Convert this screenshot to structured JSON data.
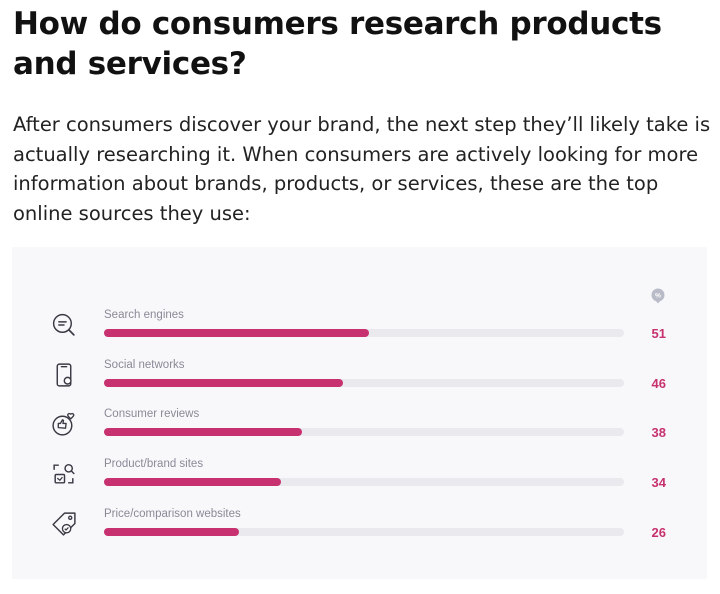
{
  "article": {
    "title": "How do consumers research products and services?",
    "intro": "After consumers discover your brand, the next step they’ll likely take is actually researching it. When consumers are actively looking for more information about brands, products, or services, these are the top online sources they use:"
  },
  "badge": {
    "label": "%",
    "icon": "percent-badge-icon"
  },
  "colors": {
    "bar": "#c7316f",
    "track": "#e9e9ee",
    "card": "#f8f8fb",
    "label": "#8a8a97"
  },
  "chart_data": {
    "type": "bar",
    "orientation": "horizontal",
    "unit": "%",
    "xlim": [
      0,
      100
    ],
    "grid": false,
    "categories": [
      "Search engines",
      "Social networks",
      "Consumer reviews",
      "Product/brand sites",
      "Price/comparison websites"
    ],
    "values": [
      51,
      46,
      38,
      34,
      26
    ],
    "icons": [
      "search-chat-icon",
      "phone-icon",
      "review-thumbs-icon",
      "product-scan-icon",
      "price-tag-icon"
    ]
  }
}
